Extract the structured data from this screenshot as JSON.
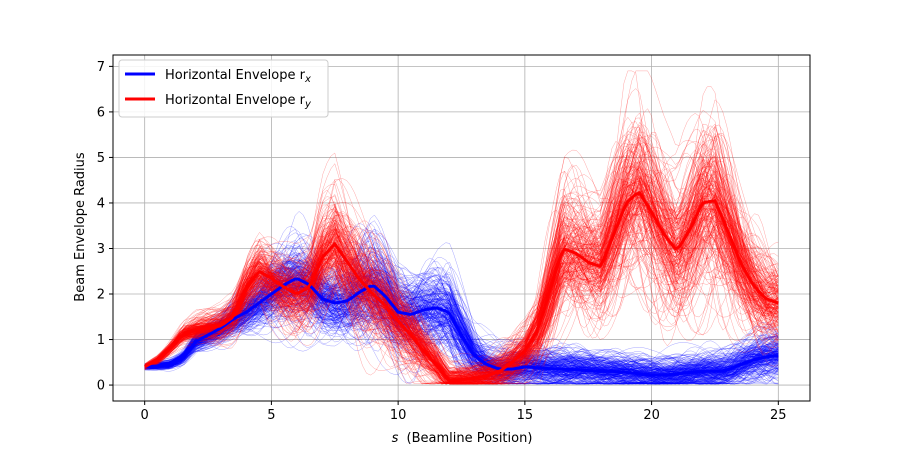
{
  "chart_data": {
    "type": "line",
    "xlabel": "(Beamline Position)",
    "xlabel_var": "s",
    "ylabel": "Beam Envelope Radius",
    "xlim": [
      -1.25,
      26.25
    ],
    "ylim": [
      -0.35,
      7.25
    ],
    "xticks": [
      0,
      5,
      10,
      15,
      20,
      25
    ],
    "yticks": [
      0,
      1,
      2,
      3,
      4,
      5,
      6,
      7
    ],
    "grid": true,
    "legend_position": "top-left",
    "colors": {
      "rx": "#0000ff",
      "ry": "#ff0000"
    },
    "ensemble_traces_per_series": 250,
    "series": [
      {
        "name": "Horizontal Envelope r",
        "subscript": "x",
        "color": "#0000ff",
        "mean": {
          "x": [
            0,
            0.5,
            1,
            1.5,
            2,
            2.5,
            3,
            3.5,
            4,
            4.5,
            5,
            5.5,
            6,
            6.5,
            7,
            7.5,
            8,
            8.5,
            9,
            9.5,
            10,
            10.5,
            11,
            11.5,
            12,
            12.5,
            13,
            13.5,
            14,
            14.5,
            15,
            15.5,
            16,
            16.5,
            17,
            17.5,
            18,
            18.5,
            19,
            19.5,
            20,
            20.5,
            21,
            21.5,
            22,
            22.5,
            23,
            23.5,
            24,
            24.5,
            25
          ],
          "y": [
            0.4,
            0.42,
            0.45,
            0.6,
            0.95,
            1.1,
            1.25,
            1.45,
            1.6,
            1.8,
            2.0,
            2.2,
            2.35,
            2.2,
            1.9,
            1.8,
            1.85,
            2.05,
            2.2,
            1.95,
            1.6,
            1.55,
            1.65,
            1.7,
            1.6,
            1.1,
            0.65,
            0.45,
            0.35,
            0.35,
            0.4,
            0.38,
            0.36,
            0.35,
            0.34,
            0.32,
            0.3,
            0.3,
            0.28,
            0.25,
            0.22,
            0.22,
            0.25,
            0.28,
            0.3,
            0.3,
            0.33,
            0.45,
            0.55,
            0.62,
            0.65
          ]
        }
      },
      {
        "name": "Horizontal Envelope r",
        "subscript": "y",
        "color": "#ff0000",
        "mean": {
          "x": [
            0,
            0.5,
            1,
            1.5,
            2,
            2.5,
            3,
            3.5,
            4,
            4.5,
            5,
            5.5,
            6,
            6.5,
            7,
            7.5,
            8,
            8.5,
            9,
            9.5,
            10,
            10.5,
            11,
            11.5,
            12,
            12.5,
            13,
            13.5,
            14,
            14.5,
            15,
            15.5,
            16,
            16.5,
            17,
            17.5,
            18,
            18.5,
            19,
            19.5,
            20,
            20.5,
            21,
            21.5,
            22,
            22.5,
            23,
            23.5,
            24,
            24.5,
            25
          ],
          "y": [
            0.4,
            0.55,
            0.8,
            1.1,
            1.2,
            1.25,
            1.3,
            1.5,
            2.1,
            2.5,
            2.35,
            2.15,
            2.0,
            2.15,
            2.8,
            3.1,
            2.7,
            2.3,
            2.0,
            1.75,
            1.4,
            1.1,
            0.75,
            0.45,
            0.1,
            0.12,
            0.15,
            0.2,
            0.3,
            0.5,
            0.75,
            1.2,
            2.1,
            3.0,
            2.9,
            2.7,
            2.6,
            3.3,
            4.0,
            4.25,
            3.8,
            3.3,
            2.95,
            3.4,
            4.0,
            4.05,
            3.4,
            2.7,
            2.2,
            1.9,
            1.8
          ]
        }
      }
    ]
  }
}
